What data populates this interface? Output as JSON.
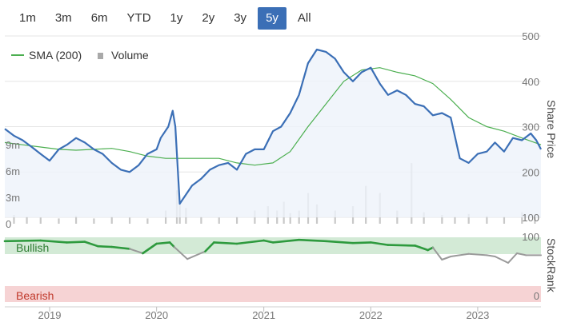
{
  "range_selector": {
    "buttons": [
      "1m",
      "3m",
      "6m",
      "YTD",
      "1y",
      "2y",
      "3y",
      "5y",
      "All"
    ],
    "active": "5y"
  },
  "legend": {
    "sma_label": "SMA (200)",
    "volume_label": "Volume"
  },
  "colors": {
    "price_line": "#3b6fb6",
    "price_fill": "#eef2fa",
    "sma_line": "#4caf50",
    "volume_bar": "#c8c8c8",
    "bullish_band": "#d3ead6",
    "bullish_line": "#2e9a3e",
    "neutral_line": "#9a9a9a",
    "bearish_band": "#f6d3d4",
    "bearish_text": "#c0392b",
    "bullish_text": "#2e7d32"
  },
  "chart_data": [
    {
      "type": "line",
      "ylabel": "Share Price",
      "ylim": [
        100,
        500
      ],
      "y_ticks": [
        100,
        200,
        300,
        400,
        500
      ],
      "x_ticks": [
        "2019",
        "2020",
        "2021",
        "2022",
        "2023"
      ],
      "x_range": [
        "2018-08-01",
        "2023-08-05"
      ],
      "series": [
        {
          "name": "price",
          "x": [
            "2018-08-01",
            "2018-09-01",
            "2018-10-01",
            "2018-11-01",
            "2018-12-01",
            "2019-01-01",
            "2019-02-01",
            "2019-03-01",
            "2019-04-01",
            "2019-05-01",
            "2019-06-01",
            "2019-07-01",
            "2019-08-01",
            "2019-09-01",
            "2019-10-01",
            "2019-11-01",
            "2019-12-01",
            "2020-01-01",
            "2020-01-15",
            "2020-02-10",
            "2020-02-25",
            "2020-03-05",
            "2020-03-20",
            "2020-04-10",
            "2020-05-01",
            "2020-06-01",
            "2020-07-01",
            "2020-08-01",
            "2020-09-01",
            "2020-10-01",
            "2020-11-01",
            "2020-12-01",
            "2021-01-01",
            "2021-02-01",
            "2021-03-01",
            "2021-04-01",
            "2021-05-01",
            "2021-06-01",
            "2021-07-01",
            "2021-08-01",
            "2021-09-01",
            "2021-10-01",
            "2021-11-01",
            "2021-12-01",
            "2022-01-01",
            "2022-02-01",
            "2022-03-01",
            "2022-04-01",
            "2022-05-01",
            "2022-06-01",
            "2022-07-01",
            "2022-08-01",
            "2022-09-01",
            "2022-10-01",
            "2022-11-01",
            "2022-12-01",
            "2023-01-01",
            "2023-02-01",
            "2023-03-01",
            "2023-04-01",
            "2023-05-01",
            "2023-06-01",
            "2023-07-01",
            "2023-07-20",
            "2023-08-05"
          ],
          "y": [
            295,
            280,
            270,
            255,
            240,
            225,
            250,
            260,
            275,
            265,
            250,
            240,
            220,
            205,
            200,
            215,
            240,
            250,
            275,
            300,
            335,
            300,
            130,
            150,
            170,
            185,
            205,
            215,
            220,
            205,
            240,
            250,
            250,
            290,
            300,
            330,
            370,
            440,
            470,
            465,
            450,
            420,
            400,
            420,
            430,
            395,
            370,
            380,
            370,
            350,
            345,
            325,
            330,
            320,
            230,
            220,
            240,
            245,
            265,
            245,
            275,
            270,
            285,
            270,
            250
          ]
        },
        {
          "name": "SMA (200)",
          "x": [
            "2018-08-01",
            "2018-10-01",
            "2018-12-01",
            "2019-02-01",
            "2019-04-01",
            "2019-06-01",
            "2019-08-01",
            "2019-10-01",
            "2019-12-01",
            "2020-02-01",
            "2020-04-01",
            "2020-06-01",
            "2020-08-01",
            "2020-10-01",
            "2020-12-01",
            "2021-02-01",
            "2021-04-01",
            "2021-06-01",
            "2021-08-01",
            "2021-10-01",
            "2021-12-01",
            "2022-02-01",
            "2022-04-01",
            "2022-06-01",
            "2022-08-01",
            "2022-10-01",
            "2022-12-01",
            "2023-02-01",
            "2023-04-01",
            "2023-06-01",
            "2023-08-05"
          ],
          "y": [
            265,
            260,
            255,
            250,
            248,
            250,
            252,
            245,
            235,
            230,
            230,
            230,
            230,
            220,
            215,
            220,
            245,
            300,
            350,
            400,
            425,
            430,
            420,
            412,
            395,
            360,
            320,
            300,
            290,
            275,
            260
          ]
        }
      ]
    },
    {
      "type": "bar",
      "ylabel": "Volume",
      "ylim": [
        0,
        10
      ],
      "y_ticks": [
        "0",
        "3m",
        "6m",
        "9m"
      ],
      "y_tick_values": [
        0,
        3,
        6,
        9
      ],
      "x": [
        "2018-09-01",
        "2018-10-15",
        "2018-12-01",
        "2019-02-01",
        "2019-04-01",
        "2019-06-01",
        "2019-08-01",
        "2019-10-01",
        "2019-12-01",
        "2020-02-01",
        "2020-03-10",
        "2020-03-20",
        "2020-04-10",
        "2020-06-01",
        "2020-08-01",
        "2020-10-01",
        "2020-12-01",
        "2021-01-15",
        "2021-02-15",
        "2021-03-10",
        "2021-04-01",
        "2021-05-01",
        "2021-06-01",
        "2021-07-01",
        "2021-09-01",
        "2021-11-01",
        "2021-12-15",
        "2022-02-01",
        "2022-04-01",
        "2022-05-20",
        "2022-07-01",
        "2022-09-01",
        "2022-10-15",
        "2022-12-01",
        "2023-02-01",
        "2023-04-01",
        "2023-06-01",
        "2023-07-15"
      ],
      "values": [
        1,
        0.8,
        0.7,
        0.6,
        0.9,
        0.6,
        0.8,
        0.7,
        0.6,
        1.5,
        3.8,
        2.5,
        1.8,
        0.8,
        0.7,
        0.8,
        1.5,
        2.0,
        1.5,
        2.5,
        1.2,
        1.5,
        3.5,
        2.2,
        1.5,
        2.0,
        4.3,
        3.5,
        1.5,
        6.9,
        1.3,
        1.0,
        0.8,
        1.1,
        0.9,
        0.8,
        1.3,
        1.0
      ]
    },
    {
      "type": "area",
      "ylabel": "StockRank",
      "band_labels": {
        "top": "Bullish",
        "bottom": "Bearish"
      },
      "ylim": [
        0,
        100
      ],
      "y_ticks": [
        "100",
        "0"
      ],
      "x": [
        "2018-08-01",
        "2018-12-01",
        "2019-03-01",
        "2019-05-01",
        "2019-06-15",
        "2019-08-01",
        "2019-10-01",
        "2019-11-15",
        "2020-01-01",
        "2020-02-15",
        "2020-03-01",
        "2020-04-15",
        "2020-06-15",
        "2020-07-15",
        "2020-10-01",
        "2021-01-01",
        "2021-02-01",
        "2021-05-01",
        "2021-08-01",
        "2021-11-01",
        "2022-01-01",
        "2022-03-01",
        "2022-06-01",
        "2022-07-15",
        "2022-08-01",
        "2022-09-01",
        "2022-10-01",
        "2022-12-01",
        "2023-02-01",
        "2023-03-01",
        "2023-04-15",
        "2023-05-15",
        "2023-06-15",
        "2023-08-05"
      ],
      "values": [
        94,
        95,
        92,
        93,
        86,
        85,
        82,
        75,
        90,
        92,
        85,
        66,
        78,
        92,
        90,
        95,
        92,
        96,
        94,
        91,
        92,
        88,
        87,
        80,
        84,
        65,
        70,
        74,
        72,
        70,
        60,
        75,
        72,
        72
      ]
    }
  ]
}
